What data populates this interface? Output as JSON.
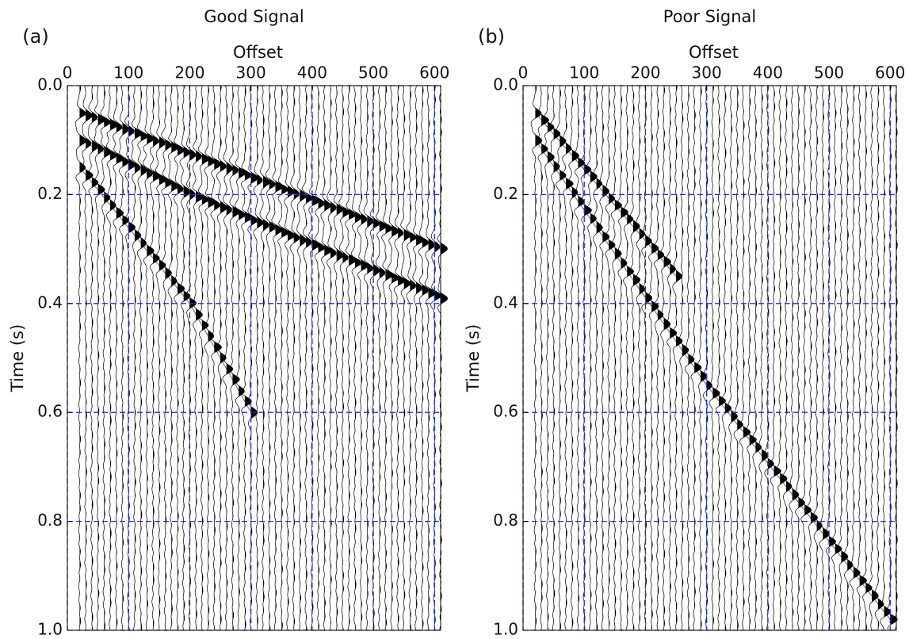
{
  "chart_data": [
    {
      "type": "wiggle",
      "title": "Good Signal",
      "panel_label": "(a)",
      "xlabel": "Offset",
      "ylabel": "Time (s)",
      "xlim": [
        0,
        610
      ],
      "ylim": [
        0,
        1
      ],
      "y_inverted": true,
      "xticks": [
        0,
        100,
        200,
        300,
        400,
        500,
        600
      ],
      "yticks": [
        {
          "value": 0,
          "label": "0.0"
        },
        0.2,
        0.4,
        0.6,
        0.8,
        {
          "value": 1,
          "label": "1.0"
        }
      ],
      "grid": true,
      "grid_color": "#1f2fd0",
      "color": "#000000",
      "trace_spacing": 10,
      "events": [
        {
          "offset": [
            20,
            610
          ],
          "time": [
            0.05,
            0.3
          ]
        },
        {
          "offset": [
            20,
            200,
            610
          ],
          "time": [
            0.1,
            0.2,
            0.39
          ]
        },
        {
          "offset": [
            20,
            200,
            300
          ],
          "time": [
            0.15,
            0.4,
            0.6
          ]
        }
      ]
    },
    {
      "type": "wiggle",
      "title": "Poor Signal",
      "panel_label": "(b)",
      "xlabel": "Offset",
      "ylabel": "Time (s)",
      "xlim": [
        0,
        610
      ],
      "ylim": [
        0,
        1
      ],
      "y_inverted": true,
      "xticks": [
        0,
        100,
        200,
        300,
        400,
        500,
        600
      ],
      "yticks": [
        {
          "value": 0,
          "label": "0.0"
        },
        0.2,
        0.4,
        0.6,
        0.8,
        {
          "value": 1,
          "label": "1.0"
        }
      ],
      "grid": true,
      "grid_color": "#1f2fd0",
      "color": "#000000",
      "trace_spacing": 10,
      "events": [
        {
          "offset": [
            20,
            300,
            600
          ],
          "time": [
            0.1,
            0.55,
            0.98
          ]
        },
        {
          "offset": [
            20,
            250
          ],
          "time": [
            0.05,
            0.35
          ]
        }
      ]
    }
  ]
}
